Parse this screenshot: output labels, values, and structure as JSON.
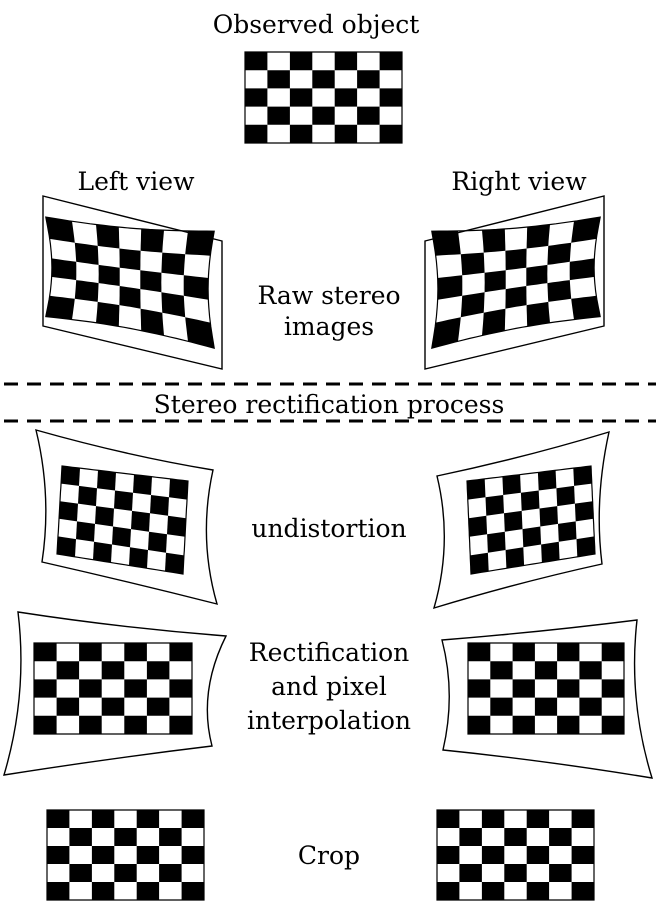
{
  "labels": {
    "observed": "Observed object",
    "left_view": "Left view",
    "right_view": "Right view",
    "raw_line1": "Raw stereo",
    "raw_line2": "images",
    "process": "Stereo rectification process",
    "undistortion": "undistortion",
    "rect_line1": "Rectification",
    "rect_line2": "and pixel",
    "rect_line3": "interpolation",
    "crop": "Crop"
  },
  "colors": {
    "ink": "#000000",
    "paper": "#ffffff"
  },
  "checkerboard": {
    "columns": 7,
    "rows": 5
  }
}
